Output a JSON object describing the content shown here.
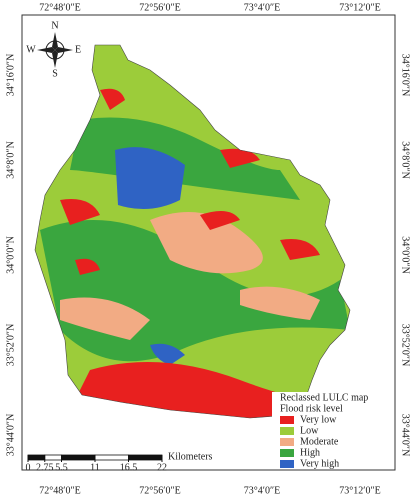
{
  "map": {
    "top_labels": [
      "72°48′0″E",
      "72°56′0″E",
      "73°4′0″E",
      "73°12′0″E"
    ],
    "bottom_labels": [
      "72°48′0″E",
      "72°56′0″E",
      "73°4′0″E",
      "73°12′0″E"
    ],
    "left_labels": [
      "34°16′0″N",
      "34°8′0″N",
      "34°0′0″N",
      "33°52′0″N",
      "33°44′0″N"
    ],
    "right_labels": [
      "34°16′0″N",
      "34°8′0″N",
      "34°0′0″N",
      "33°52′0″N",
      "33°44′0″N"
    ],
    "compass": {
      "n": "N",
      "e": "E",
      "s": "S",
      "w": "W"
    },
    "legend": {
      "title": "Reclassed LULC map",
      "subtitle": "Flood risk level",
      "items": [
        {
          "label": "Very low",
          "color": "#e8201f"
        },
        {
          "label": "Low",
          "color": "#9ccc3a"
        },
        {
          "label": "Moderate",
          "color": "#f2ab84"
        },
        {
          "label": "High",
          "color": "#3aa63f"
        },
        {
          "label": "Very high",
          "color": "#2f63c4"
        }
      ]
    },
    "scale_bar": {
      "ticks": [
        0,
        2.75,
        5.5,
        11,
        16.5,
        22
      ],
      "unit": "Kilometers"
    }
  }
}
